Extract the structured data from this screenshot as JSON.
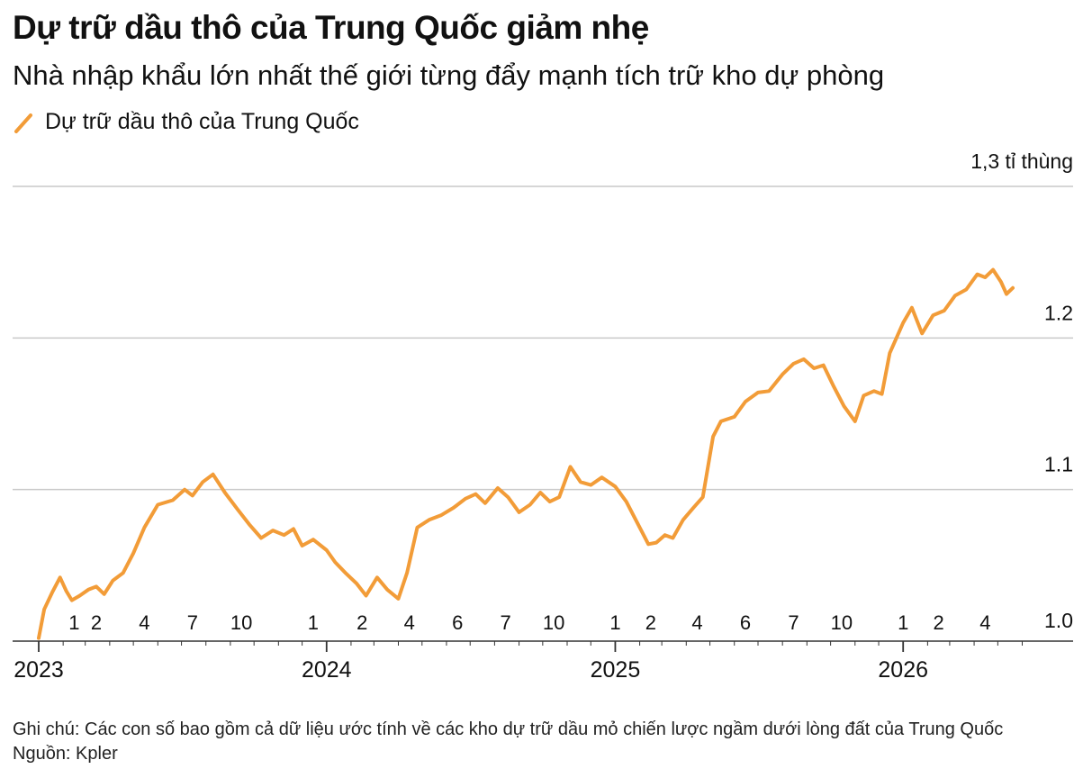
{
  "header": {
    "title": "Dự trữ dầu thô của Trung Quốc giảm nhẹ",
    "subtitle": "Nhà nhập khẩu lớn nhất thế giới từng đẩy mạnh tích trữ kho dự phòng"
  },
  "footer": {
    "note": "Ghi chú: Các con số bao gồm cả dữ liệu ước tính về các kho dự trữ dầu mỏ chiến lược ngầm dưới lòng đất của Trung Quốc",
    "source": "Nguồn: Kpler"
  },
  "colors": {
    "series": "#f29c38",
    "grid": "#c9c9c9",
    "axis": "#333333",
    "text": "#111111"
  },
  "chart_data": {
    "type": "line",
    "title": "Dự trữ dầu thô của Trung Quốc giảm nhẹ",
    "subtitle": "Nhà nhập khẩu lớn nhất thế giới từng đẩy mạnh tích trữ kho dự phòng",
    "y_unit_label": "1,3 tỉ thùng",
    "ylim": [
      1.0,
      1.3
    ],
    "y_ticks": [
      {
        "value": 1.0,
        "label": "1.0"
      },
      {
        "value": 1.1,
        "label": "1.1"
      },
      {
        "value": 1.2,
        "label": "1.2"
      },
      {
        "value": 1.3,
        "label": "1,3 tỉ thùng"
      }
    ],
    "xlim": [
      "2023-01-01",
      "2026-06-01"
    ],
    "year_labels": [
      {
        "x": "2023-01-01",
        "label": "2023"
      },
      {
        "x": "2024-01-01",
        "label": "2024"
      },
      {
        "x": "2025-01-01",
        "label": "2025"
      },
      {
        "x": "2026-01-01",
        "label": "2026"
      }
    ],
    "month_labels": [
      {
        "x": "2023-02-15",
        "label": "1"
      },
      {
        "x": "2023-03-15",
        "label": "2"
      },
      {
        "x": "2023-05-15",
        "label": "4"
      },
      {
        "x": "2023-07-15",
        "label": "7"
      },
      {
        "x": "2023-09-15",
        "label": "10"
      },
      {
        "x": "2023-12-15",
        "label": "1"
      },
      {
        "x": "2024-02-15",
        "label": "2"
      },
      {
        "x": "2024-04-15",
        "label": "4"
      },
      {
        "x": "2024-06-15",
        "label": "6"
      },
      {
        "x": "2024-08-15",
        "label": "7"
      },
      {
        "x": "2024-10-15",
        "label": "10"
      },
      {
        "x": "2025-01-01",
        "label": "1"
      },
      {
        "x": "2025-02-15",
        "label": "2"
      },
      {
        "x": "2025-04-15",
        "label": "4"
      },
      {
        "x": "2025-06-15",
        "label": "6"
      },
      {
        "x": "2025-08-15",
        "label": "7"
      },
      {
        "x": "2025-10-15",
        "label": "10"
      },
      {
        "x": "2026-01-01",
        "label": "1"
      },
      {
        "x": "2026-02-15",
        "label": "2"
      },
      {
        "x": "2026-04-15",
        "label": "4"
      }
    ],
    "grid": true,
    "legend": "top-left",
    "series": [
      {
        "name": "Dự trữ dầu thô của Trung Quốc",
        "color": "#f29c38",
        "points": [
          [
            "2023-01-01",
            1.002
          ],
          [
            "2023-01-08",
            1.021
          ],
          [
            "2023-01-18",
            1.032
          ],
          [
            "2023-01-28",
            1.042
          ],
          [
            "2023-02-05",
            1.033
          ],
          [
            "2023-02-12",
            1.027
          ],
          [
            "2023-02-22",
            1.03
          ],
          [
            "2023-03-05",
            1.034
          ],
          [
            "2023-03-15",
            1.036
          ],
          [
            "2023-03-25",
            1.031
          ],
          [
            "2023-04-05",
            1.04
          ],
          [
            "2023-04-18",
            1.045
          ],
          [
            "2023-05-01",
            1.058
          ],
          [
            "2023-05-15",
            1.075
          ],
          [
            "2023-06-01",
            1.09
          ],
          [
            "2023-06-20",
            1.093
          ],
          [
            "2023-07-05",
            1.1
          ],
          [
            "2023-07-15",
            1.096
          ],
          [
            "2023-07-28",
            1.105
          ],
          [
            "2023-08-10",
            1.11
          ],
          [
            "2023-08-25",
            1.098
          ],
          [
            "2023-09-10",
            1.087
          ],
          [
            "2023-09-25",
            1.077
          ],
          [
            "2023-10-10",
            1.068
          ],
          [
            "2023-10-25",
            1.073
          ],
          [
            "2023-11-08",
            1.07
          ],
          [
            "2023-11-20",
            1.074
          ],
          [
            "2023-12-01",
            1.063
          ],
          [
            "2023-12-15",
            1.067
          ],
          [
            "2024-01-01",
            1.06
          ],
          [
            "2024-01-12",
            1.052
          ],
          [
            "2024-01-25",
            1.045
          ],
          [
            "2024-02-08",
            1.038
          ],
          [
            "2024-02-20",
            1.03
          ],
          [
            "2024-03-05",
            1.042
          ],
          [
            "2024-03-18",
            1.034
          ],
          [
            "2024-04-01",
            1.028
          ],
          [
            "2024-04-12",
            1.045
          ],
          [
            "2024-04-25",
            1.075
          ],
          [
            "2024-05-10",
            1.08
          ],
          [
            "2024-05-25",
            1.083
          ],
          [
            "2024-06-10",
            1.088
          ],
          [
            "2024-06-25",
            1.094
          ],
          [
            "2024-07-08",
            1.097
          ],
          [
            "2024-07-20",
            1.091
          ],
          [
            "2024-08-05",
            1.101
          ],
          [
            "2024-08-18",
            1.095
          ],
          [
            "2024-09-01",
            1.085
          ],
          [
            "2024-09-15",
            1.09
          ],
          [
            "2024-09-28",
            1.098
          ],
          [
            "2024-10-10",
            1.092
          ],
          [
            "2024-10-22",
            1.095
          ],
          [
            "2024-11-05",
            1.115
          ],
          [
            "2024-11-18",
            1.105
          ],
          [
            "2024-12-01",
            1.103
          ],
          [
            "2024-12-15",
            1.108
          ],
          [
            "2025-01-01",
            1.102
          ],
          [
            "2025-01-15",
            1.092
          ],
          [
            "2025-02-01",
            1.075
          ],
          [
            "2025-02-12",
            1.064
          ],
          [
            "2025-02-22",
            1.065
          ],
          [
            "2025-03-05",
            1.07
          ],
          [
            "2025-03-15",
            1.068
          ],
          [
            "2025-03-28",
            1.08
          ],
          [
            "2025-04-10",
            1.088
          ],
          [
            "2025-04-22",
            1.095
          ],
          [
            "2025-05-05",
            1.135
          ],
          [
            "2025-05-15",
            1.145
          ],
          [
            "2025-06-01",
            1.148
          ],
          [
            "2025-06-15",
            1.158
          ],
          [
            "2025-07-01",
            1.164
          ],
          [
            "2025-07-15",
            1.165
          ],
          [
            "2025-08-01",
            1.176
          ],
          [
            "2025-08-15",
            1.183
          ],
          [
            "2025-08-28",
            1.186
          ],
          [
            "2025-09-10",
            1.18
          ],
          [
            "2025-09-22",
            1.182
          ],
          [
            "2025-10-05",
            1.168
          ],
          [
            "2025-10-18",
            1.155
          ],
          [
            "2025-11-01",
            1.145
          ],
          [
            "2025-11-12",
            1.162
          ],
          [
            "2025-11-25",
            1.165
          ],
          [
            "2025-12-05",
            1.163
          ],
          [
            "2025-12-15",
            1.19
          ],
          [
            "2026-01-01",
            1.21
          ],
          [
            "2026-01-12",
            1.22
          ],
          [
            "2026-01-25",
            1.203
          ],
          [
            "2026-02-08",
            1.215
          ],
          [
            "2026-02-22",
            1.218
          ],
          [
            "2026-03-08",
            1.228
          ],
          [
            "2026-03-22",
            1.232
          ],
          [
            "2026-04-05",
            1.242
          ],
          [
            "2026-04-15",
            1.24
          ],
          [
            "2026-04-25",
            1.245
          ],
          [
            "2026-05-05",
            1.237
          ],
          [
            "2026-05-12",
            1.229
          ],
          [
            "2026-05-20",
            1.233
          ]
        ]
      }
    ]
  }
}
